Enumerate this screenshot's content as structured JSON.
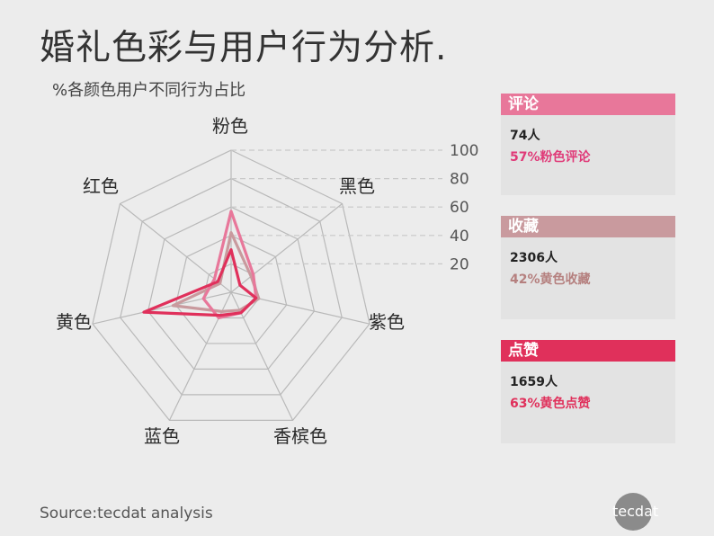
{
  "title": "婚礼色彩与用户行为分析.",
  "subtitle": "%各颜色用户不同行为占比",
  "source": "Source:tecdat analysis",
  "logo": "tecdat",
  "colors": {
    "comment": "#e8779a",
    "collect": "#c99a9e",
    "like": "#e0305b",
    "grid": "#b9b9b9",
    "tick_dash": "#c8c8c8"
  },
  "cards": [
    {
      "title": "评论",
      "count": "74人",
      "desc": "57%粉色评论",
      "color": "#e8779a",
      "desc_color": "#e03a78"
    },
    {
      "title": "收藏",
      "count": "2306人",
      "desc": "42%黄色收藏",
      "color": "#c99a9e",
      "desc_color": "#b5807f"
    },
    {
      "title": "点赞",
      "count": "1659人",
      "desc": "63%黄色点赞",
      "color": "#e0305b",
      "desc_color": "#e0305b"
    }
  ],
  "chart_data": {
    "type": "radar",
    "categories": [
      "粉色",
      "黑色",
      "紫色",
      "香槟色",
      "蓝色",
      "黄色",
      "红色"
    ],
    "ticks": [
      20,
      40,
      60,
      80,
      100
    ],
    "range": [
      0,
      100
    ],
    "series": [
      {
        "name": "评论",
        "color": "#e8779a",
        "values": [
          57,
          20,
          18,
          16,
          20,
          20,
          15
        ]
      },
      {
        "name": "收藏",
        "color": "#c99a9e",
        "values": [
          42,
          18,
          20,
          14,
          15,
          42,
          10
        ]
      },
      {
        "name": "点赞",
        "color": "#e0305b",
        "values": [
          30,
          8,
          18,
          16,
          18,
          63,
          12
        ]
      }
    ]
  }
}
